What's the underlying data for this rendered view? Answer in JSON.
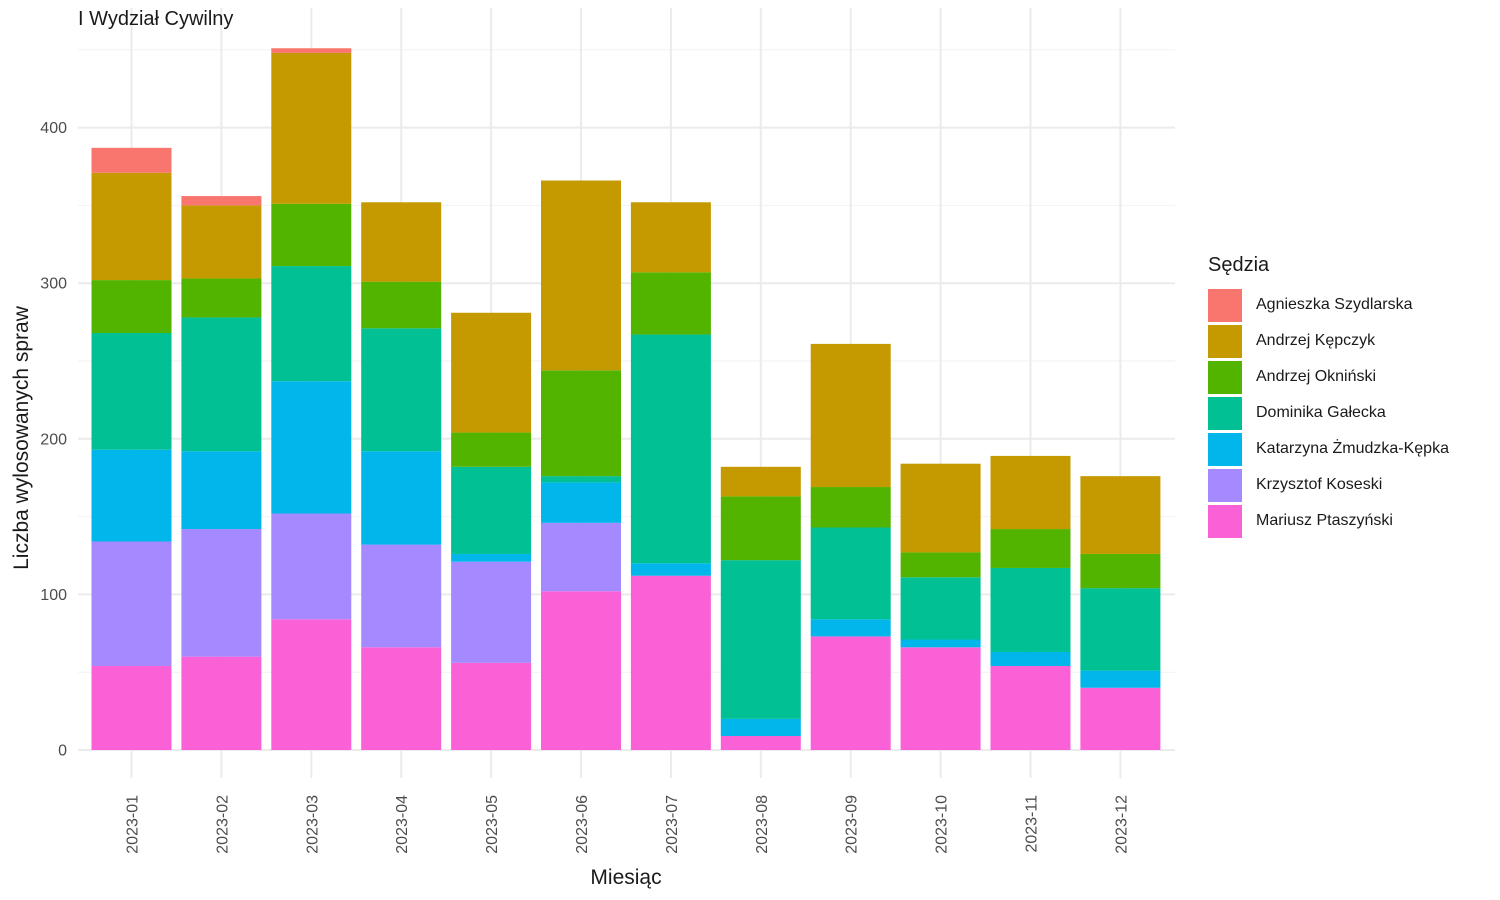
{
  "chart_data": {
    "type": "bar",
    "stacked": true,
    "title": "I Wydział Cywilny",
    "xlabel": "Miesiąc",
    "ylabel": "Liczba wylosowanych spraw",
    "ylim": [
      0,
      450
    ],
    "yticks": [
      0,
      100,
      200,
      300,
      400
    ],
    "grid": true,
    "legend_position": "right",
    "legend_title": "Sędzia",
    "categories": [
      "2023-01",
      "2023-02",
      "2023-03",
      "2023-04",
      "2023-05",
      "2023-06",
      "2023-07",
      "2023-08",
      "2023-09",
      "2023-10",
      "2023-11",
      "2023-12"
    ],
    "series": [
      {
        "name": "Agnieszka Szydlarska",
        "color": "#F8766D",
        "values": [
          16,
          6,
          3,
          0,
          0,
          0,
          0,
          0,
          0,
          0,
          0,
          0
        ]
      },
      {
        "name": "Andrzej Kępczyk",
        "color": "#C49A00",
        "values": [
          69,
          47,
          97,
          51,
          77,
          122,
          45,
          19,
          92,
          57,
          47,
          50
        ]
      },
      {
        "name": "Andrzej Okniński",
        "color": "#53B400",
        "values": [
          34,
          25,
          40,
          30,
          22,
          68,
          40,
          41,
          26,
          16,
          25,
          22
        ]
      },
      {
        "name": "Dominika Gałecka",
        "color": "#00C094",
        "values": [
          75,
          86,
          74,
          79,
          56,
          4,
          147,
          102,
          59,
          40,
          54,
          53
        ]
      },
      {
        "name": "Katarzyna Żmudzka-Kępka",
        "color": "#00B6EB",
        "values": [
          59,
          50,
          85,
          60,
          5,
          26,
          8,
          11,
          11,
          5,
          9,
          11
        ]
      },
      {
        "name": "Krzysztof Koseski",
        "color": "#A58AFF",
        "values": [
          80,
          82,
          68,
          66,
          65,
          44,
          0,
          0,
          0,
          0,
          0,
          0
        ]
      },
      {
        "name": "Mariusz Ptaszyński",
        "color": "#FB61D7",
        "values": [
          54,
          60,
          84,
          66,
          56,
          102,
          112,
          9,
          73,
          66,
          54,
          40
        ]
      }
    ]
  }
}
